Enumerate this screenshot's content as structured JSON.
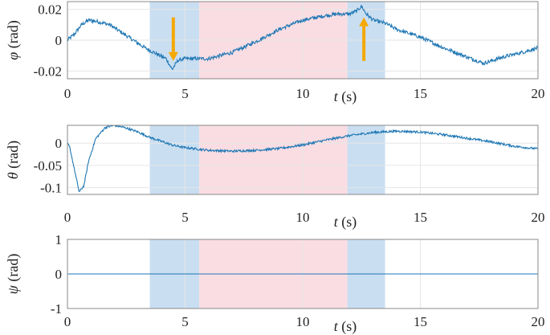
{
  "colors": {
    "signal": "#1f77b4",
    "shade_blue": "#c9def1",
    "shade_pink": "#f9dde3",
    "arrow": "#f5a800",
    "axis": "#888888",
    "grid": "#e6e6e6"
  },
  "chart_data": [
    {
      "type": "line",
      "ylabel_sym": "φ",
      "ylabel_unit": " (rad)",
      "xlabel_sym": "t",
      "xlabel_unit": " (s)",
      "xlim": [
        0,
        20
      ],
      "ylim": [
        -0.025,
        0.025
      ],
      "x_ticks": [
        "0",
        "5",
        "10",
        "15",
        "20"
      ],
      "y_ticks": [
        0.02,
        0,
        -0.02
      ],
      "y_tick_labels": [
        "0.02",
        "0",
        "-0.02"
      ],
      "grid": true,
      "shaded_regions": [
        {
          "x0": 3.5,
          "x1": 5.6,
          "color": "blue"
        },
        {
          "x0": 5.6,
          "x1": 11.9,
          "color": "pink"
        },
        {
          "x0": 11.9,
          "x1": 13.5,
          "color": "blue"
        }
      ],
      "annotations": [
        {
          "type": "arrow-down",
          "x": 4.5,
          "y_from": 0.0148,
          "y_to": -0.0135
        },
        {
          "type": "arrow-up",
          "x": 12.6,
          "y_from": -0.0135,
          "y_to": 0.0148
        }
      ],
      "noise": 0.0012,
      "series": [
        {
          "x": [
            0,
            0.3,
            0.6,
            0.9,
            1.3,
            1.8,
            2.3,
            2.8,
            3.3,
            3.8,
            4.2,
            4.45,
            4.7,
            5.0,
            5.5,
            6.0,
            7.0,
            8.0,
            9.0,
            10.0,
            11.0,
            11.5,
            12.0,
            12.3,
            12.5,
            12.7,
            13.0,
            13.5,
            14.0,
            15.0,
            16.0,
            17.0,
            17.7,
            18.5,
            19.3,
            20.0
          ],
          "values": [
            0.0,
            0.004,
            0.01,
            0.013,
            0.012,
            0.01,
            0.005,
            0.0,
            -0.005,
            -0.009,
            -0.012,
            -0.019,
            -0.013,
            -0.012,
            -0.012,
            -0.012,
            -0.008,
            -0.001,
            0.007,
            0.013,
            0.016,
            0.017,
            0.017,
            0.019,
            0.022,
            0.017,
            0.013,
            0.011,
            0.007,
            0.002,
            -0.005,
            -0.011,
            -0.015,
            -0.011,
            -0.008,
            -0.005
          ]
        }
      ]
    },
    {
      "type": "line",
      "ylabel_sym": "θ",
      "ylabel_unit": " (rad)",
      "xlabel_sym": "t",
      "xlabel_unit": " (s)",
      "xlim": [
        0,
        20
      ],
      "ylim": [
        -0.115,
        0.04
      ],
      "x_ticks": [
        "0",
        "5",
        "10",
        "15",
        "20"
      ],
      "y_ticks": [
        0,
        -0.05,
        -0.1
      ],
      "y_tick_labels": [
        "0",
        "-0.05",
        "-0.1"
      ],
      "grid": true,
      "shaded_regions": [
        {
          "x0": 3.5,
          "x1": 5.6,
          "color": "blue"
        },
        {
          "x0": 5.6,
          "x1": 11.9,
          "color": "pink"
        },
        {
          "x0": 11.9,
          "x1": 13.5,
          "color": "blue"
        }
      ],
      "noise": 0.0025,
      "series": [
        {
          "x": [
            0,
            0.1,
            0.3,
            0.5,
            0.7,
            0.9,
            1.2,
            1.6,
            2.0,
            2.5,
            3.0,
            3.5,
            4.0,
            4.5,
            5.0,
            6.0,
            7.0,
            8.0,
            9.0,
            10.0,
            11.0,
            12.0,
            13.0,
            14.0,
            15.0,
            16.0,
            17.0,
            18.0,
            19.0,
            20.0
          ],
          "values": [
            0.0,
            -0.01,
            -0.06,
            -0.11,
            -0.095,
            -0.04,
            0.01,
            0.035,
            0.04,
            0.034,
            0.025,
            0.013,
            0.004,
            -0.005,
            -0.01,
            -0.016,
            -0.018,
            -0.016,
            -0.012,
            -0.004,
            0.007,
            0.017,
            0.024,
            0.027,
            0.025,
            0.019,
            0.011,
            0.003,
            -0.007,
            -0.013
          ]
        }
      ]
    },
    {
      "type": "line",
      "ylabel_sym": "ψ",
      "ylabel_unit": " (rad)",
      "xlabel_sym": "t",
      "xlabel_unit": " (s)",
      "xlim": [
        0,
        20
      ],
      "ylim": [
        -1,
        1
      ],
      "x_ticks": [
        "0",
        "5",
        "10",
        "15",
        "20"
      ],
      "y_ticks": [
        1,
        0,
        -1
      ],
      "y_tick_labels": [
        "1",
        "0",
        "-1"
      ],
      "grid": true,
      "shaded_regions": [
        {
          "x0": 3.5,
          "x1": 5.6,
          "color": "blue"
        },
        {
          "x0": 5.6,
          "x1": 11.9,
          "color": "pink"
        },
        {
          "x0": 11.9,
          "x1": 13.5,
          "color": "blue"
        }
      ],
      "noise": 0,
      "series": [
        {
          "x": [
            0,
            20
          ],
          "values": [
            0,
            0
          ]
        }
      ]
    }
  ]
}
